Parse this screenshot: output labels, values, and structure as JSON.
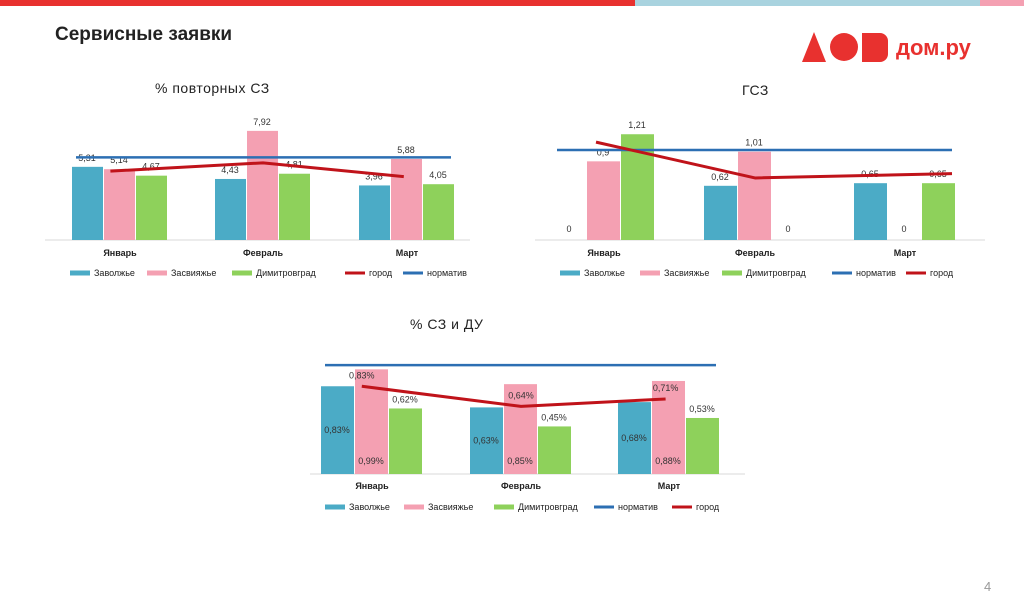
{
  "page": {
    "title": "Сервисные заявки",
    "page_number": "4"
  },
  "logo": {
    "text": "дом.ру"
  },
  "colors": {
    "red": "#e8312f",
    "light_blue": "#a9d3df",
    "zavolzhye": "#4babc6",
    "zasviyazhye": "#f4a0b2",
    "dimitrovgrad": "#8ed15b",
    "gorod": "#c0131a",
    "normativ": "#2c6fb3"
  },
  "chart_data": [
    {
      "type": "bar",
      "title": "% повторных СЗ",
      "categories": [
        "Январь",
        "Февраль",
        "Март"
      ],
      "series": [
        {
          "name": "Заволжье",
          "values": [
            5.31,
            4.43,
            3.96
          ],
          "labels": [
            "5,31",
            "4,43",
            "3,96"
          ]
        },
        {
          "name": "Засвияжье",
          "values": [
            5.14,
            7.92,
            5.88
          ],
          "labels": [
            "5,14",
            "7,92",
            "5,88"
          ]
        },
        {
          "name": "Димитровград",
          "values": [
            4.67,
            4.81,
            4.05
          ],
          "labels": [
            "4,67",
            "4,81",
            "4,05"
          ]
        },
        {
          "name": "город",
          "type": "line",
          "values": [
            5.0,
            5.6,
            4.6
          ]
        },
        {
          "name": "норматив",
          "type": "line",
          "values": [
            6.0,
            6.0,
            6.0
          ]
        }
      ],
      "legend": [
        "Заволжье",
        "Засвияжье",
        "Димитровград",
        "город",
        "норматив"
      ],
      "ylim": [
        0,
        9
      ]
    },
    {
      "type": "bar",
      "title": "ГСЗ",
      "categories": [
        "Январь",
        "Февраль",
        "Март"
      ],
      "series": [
        {
          "name": "Заволжье",
          "values": [
            0,
            0.62,
            0.65
          ],
          "labels": [
            "0",
            "0,62",
            "0,65"
          ]
        },
        {
          "name": "Засвияжье",
          "values": [
            0.9,
            1.01,
            0
          ],
          "labels": [
            "0,9",
            "1,01",
            "0"
          ]
        },
        {
          "name": "Димитровград",
          "values": [
            1.21,
            0,
            0.65
          ],
          "labels": [
            "1,21",
            "0",
            "0,65"
          ]
        },
        {
          "name": "норматив",
          "type": "line",
          "values": [
            1.03,
            1.03,
            1.03
          ]
        },
        {
          "name": "город",
          "type": "line",
          "values": [
            1.12,
            0.71,
            0.76
          ]
        }
      ],
      "legend": [
        "Заволжье",
        "Засвияжье",
        "Димитровград",
        "норматив",
        "город"
      ],
      "ylim": [
        0,
        1.35
      ]
    },
    {
      "type": "bar",
      "title": "% СЗ и ДУ",
      "categories": [
        "Январь",
        "Февраль",
        "Март"
      ],
      "series": [
        {
          "name": "Заволжье",
          "values": [
            0.83,
            0.63,
            0.68
          ],
          "labels": [
            "0,83%",
            "0,63%",
            "0,68%"
          ]
        },
        {
          "name": "Засвияжье",
          "values": [
            0.99,
            0.85,
            0.88
          ],
          "labels": [
            "0,99%",
            "0,85%",
            "0,88%"
          ]
        },
        {
          "name": "Димитровград",
          "values": [
            0.62,
            0.45,
            0.53
          ],
          "labels": [
            "0,62%",
            "0,45%",
            "0,53%"
          ]
        },
        {
          "name": "норматив",
          "type": "line",
          "values": [
            1.03,
            1.03,
            1.03
          ]
        },
        {
          "name": "город",
          "type": "line",
          "values": [
            0.83,
            0.64,
            0.71
          ],
          "labels": [
            "0,83%",
            "0,64%",
            "0,71%"
          ]
        }
      ],
      "legend": [
        "Заволжье",
        "Засвияжье",
        "Димитровград",
        "норматив",
        "город"
      ],
      "ylim": [
        0,
        1.05
      ]
    }
  ]
}
